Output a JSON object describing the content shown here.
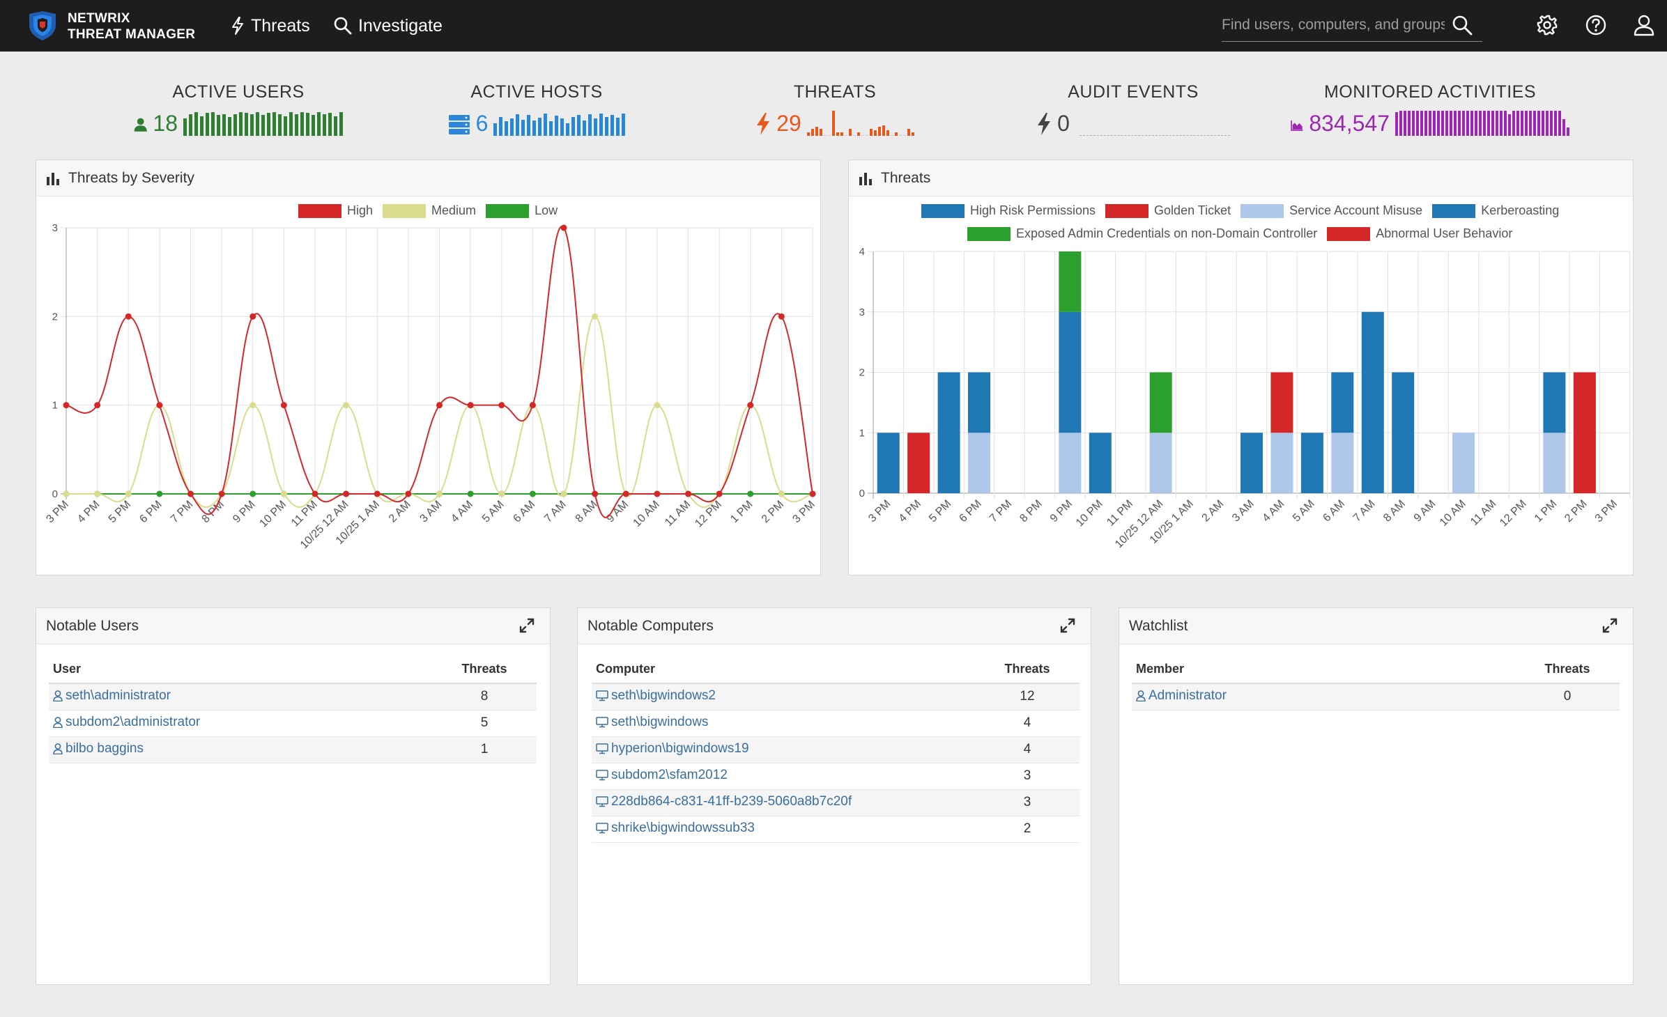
{
  "brand": {
    "line1": "NETWRIX",
    "line2": "THREAT MANAGER"
  },
  "nav": {
    "threats": "Threats",
    "investigate": "Investigate"
  },
  "search": {
    "placeholder": "Find users, computers, and groups"
  },
  "colors": {
    "users": "#2e7d32",
    "hosts": "#2b88d8",
    "threats": "#e8581c",
    "audit": "#444444",
    "activities": "#9c27b0"
  },
  "stats": {
    "users": {
      "label": "ACTIVE USERS",
      "value": "18",
      "icon": "user-icon",
      "spark": [
        18,
        22,
        24,
        20,
        23,
        24,
        21,
        22,
        19,
        22,
        24,
        23,
        22,
        24,
        21,
        23,
        24,
        22,
        20,
        24,
        22,
        24,
        23,
        21,
        24,
        22,
        23,
        20,
        24
      ]
    },
    "hosts": {
      "label": "ACTIVE HOSTS",
      "value": "6",
      "icon": "server-icon",
      "spark": [
        16,
        24,
        18,
        22,
        27,
        20,
        26,
        19,
        23,
        28,
        18,
        25,
        22,
        16,
        24,
        26,
        19,
        27,
        22,
        28,
        24,
        26,
        23,
        28
      ]
    },
    "threats": {
      "label": "THREATS",
      "value": "29",
      "icon": "bolt-icon",
      "spark": [
        2,
        4,
        5,
        4,
        0,
        0,
        14,
        2,
        2,
        0,
        4,
        0,
        2,
        0,
        0,
        4,
        3,
        5,
        6,
        3,
        0,
        2,
        0,
        0,
        4,
        2
      ]
    },
    "audit": {
      "label": "AUDIT EVENTS",
      "value": "0",
      "icon": "bolt-icon"
    },
    "activities": {
      "label": "MONITORED ACTIVITIES",
      "value": "834,547",
      "icon": "area-chart-icon",
      "spark": [
        28,
        30,
        30,
        30,
        30,
        30,
        30,
        30,
        30,
        30,
        30,
        30,
        30,
        30,
        30,
        30,
        30,
        30,
        30,
        30,
        30,
        30,
        30,
        30,
        30,
        30,
        30,
        26,
        30,
        30,
        30,
        30,
        30,
        30,
        30,
        30,
        30,
        30,
        30,
        30,
        20,
        10
      ]
    }
  },
  "chart_data": [
    {
      "type": "line",
      "title": "Threats by Severity",
      "x": [
        "3 PM",
        "4 PM",
        "5 PM",
        "6 PM",
        "7 PM",
        "8 PM",
        "9 PM",
        "10 PM",
        "11 PM",
        "10/25 12 AM",
        "10/25 1 AM",
        "2 AM",
        "3 AM",
        "4 AM",
        "5 AM",
        "6 AM",
        "7 AM",
        "8 AM",
        "9 AM",
        "10 AM",
        "11 AM",
        "12 PM",
        "1 PM",
        "2 PM",
        "3 PM"
      ],
      "ylim": [
        0,
        3
      ],
      "yticks": [
        0,
        1,
        2,
        3
      ],
      "legend_position": "top-center",
      "grid": true,
      "series": [
        {
          "name": "High",
          "color": "#d62728",
          "values": [
            1,
            1,
            2,
            1,
            0,
            0,
            2,
            1,
            0,
            0,
            0,
            0,
            1,
            1,
            1,
            1,
            3,
            0,
            0,
            0,
            0,
            0,
            1,
            2,
            0
          ]
        },
        {
          "name": "Medium",
          "color": "#dbdb8d",
          "values": [
            0,
            0,
            0,
            1,
            0,
            0,
            1,
            0,
            0,
            1,
            0,
            0,
            0,
            1,
            0,
            1,
            0,
            2,
            0,
            1,
            0,
            0,
            1,
            0,
            0
          ]
        },
        {
          "name": "Low",
          "color": "#2ca02c",
          "values": [
            0,
            0,
            0,
            0,
            0,
            0,
            0,
            0,
            0,
            0,
            0,
            0,
            0,
            0,
            0,
            0,
            0,
            0,
            0,
            0,
            0,
            0,
            0,
            0,
            0
          ]
        }
      ]
    },
    {
      "type": "bar",
      "title": "Threats",
      "stacked": true,
      "categories": [
        "3 PM",
        "4 PM",
        "5 PM",
        "6 PM",
        "7 PM",
        "8 PM",
        "9 PM",
        "10 PM",
        "11 PM",
        "10/25 12 AM",
        "10/25 1 AM",
        "2 AM",
        "3 AM",
        "4 AM",
        "5 AM",
        "6 AM",
        "7 AM",
        "8 AM",
        "9 AM",
        "10 AM",
        "11 AM",
        "12 PM",
        "1 PM",
        "2 PM",
        "3 PM"
      ],
      "ylim": [
        0,
        4
      ],
      "yticks": [
        0,
        1,
        2,
        3,
        4
      ],
      "legend_position": "top-center",
      "grid": true,
      "series": [
        {
          "name": "High Risk Permissions",
          "color": "#1f77b4",
          "values": [
            1,
            0,
            2,
            1,
            0,
            0,
            2,
            1,
            0,
            0,
            0,
            0,
            1,
            0,
            1,
            1,
            3,
            2,
            0,
            0,
            0,
            0,
            1,
            0,
            0
          ]
        },
        {
          "name": "Golden Ticket",
          "color": "#d62728",
          "values": [
            0,
            1,
            0,
            0,
            0,
            0,
            0,
            0,
            0,
            0,
            0,
            0,
            0,
            1,
            0,
            0,
            0,
            0,
            0,
            0,
            0,
            0,
            0,
            0,
            0
          ]
        },
        {
          "name": "Service Account Misuse",
          "color": "#aec7e8",
          "values": [
            0,
            0,
            0,
            1,
            0,
            0,
            1,
            0,
            0,
            1,
            0,
            0,
            0,
            1,
            0,
            1,
            0,
            0,
            0,
            1,
            0,
            0,
            1,
            0,
            0
          ]
        },
        {
          "name": "Kerberoasting",
          "color": "#1f77b4",
          "values": [
            0,
            0,
            0,
            0,
            0,
            0,
            0,
            0,
            0,
            0,
            0,
            0,
            0,
            0,
            0,
            0,
            0,
            0,
            0,
            0,
            0,
            0,
            0,
            0,
            0
          ]
        },
        {
          "name": "Exposed Admin Credentials on non-Domain Controller",
          "color": "#2ca02c",
          "values": [
            0,
            0,
            0,
            0,
            0,
            0,
            1,
            0,
            0,
            1,
            0,
            0,
            0,
            0,
            0,
            0,
            0,
            0,
            0,
            0,
            0,
            0,
            0,
            0,
            0
          ]
        },
        {
          "name": "Abnormal User Behavior",
          "color": "#d62728",
          "values": [
            0,
            0,
            0,
            0,
            0,
            0,
            0,
            0,
            0,
            0,
            0,
            0,
            0,
            0,
            0,
            0,
            0,
            0,
            0,
            0,
            0,
            0,
            0,
            2,
            0
          ]
        }
      ]
    }
  ],
  "panels": {
    "severity": {
      "title": "Threats by Severity"
    },
    "threats": {
      "title": "Threats"
    },
    "users": {
      "title": "Notable Users",
      "col1": "User",
      "col2": "Threats",
      "rows": [
        {
          "name": "seth\\administrator",
          "count": "8"
        },
        {
          "name": "subdom2\\administrator",
          "count": "5"
        },
        {
          "name": "bilbo baggins",
          "count": "1"
        }
      ]
    },
    "computers": {
      "title": "Notable Computers",
      "col1": "Computer",
      "col2": "Threats",
      "rows": [
        {
          "name": "seth\\bigwindows2",
          "count": "12"
        },
        {
          "name": "seth\\bigwindows",
          "count": "4"
        },
        {
          "name": "hyperion\\bigwindows19",
          "count": "4"
        },
        {
          "name": "subdom2\\sfam2012",
          "count": "3"
        },
        {
          "name": "228db864-c831-41ff-b239-5060a8b7c20f",
          "count": "3"
        },
        {
          "name": "shrike\\bigwindowssub33",
          "count": "2"
        }
      ]
    },
    "watchlist": {
      "title": "Watchlist",
      "col1": "Member",
      "col2": "Threats",
      "rows": [
        {
          "name": "Administrator",
          "count": "0"
        }
      ]
    }
  }
}
